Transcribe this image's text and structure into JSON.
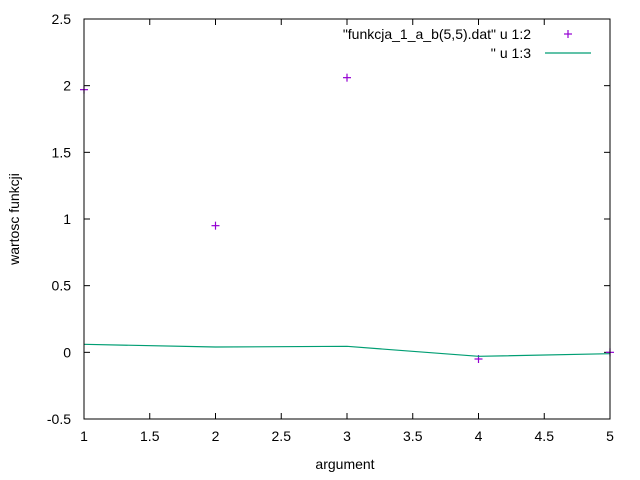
{
  "chart_data": {
    "type": "scatter",
    "title": "",
    "xlabel": "argument",
    "ylabel": "wartosc funkcji",
    "xlim": [
      1,
      5
    ],
    "ylim": [
      -0.5,
      2.5
    ],
    "xticks": [
      "1",
      "1.5",
      "2",
      "2.5",
      "3",
      "3.5",
      "4",
      "4.5",
      "5"
    ],
    "yticks": [
      "-0.5",
      "0",
      "0.5",
      "1",
      "1.5",
      "2",
      "2.5"
    ],
    "grid": false,
    "legend_position": "top-right",
    "series": [
      {
        "name": "\"funkcja_1_a_b(5,5).dat\" u 1:2",
        "style": "points",
        "color": "#9400d3",
        "x": [
          1,
          2,
          3,
          4,
          5
        ],
        "y": [
          1.97,
          0.95,
          2.06,
          -0.05,
          0.0
        ]
      },
      {
        "name": "'' u 1:3",
        "style": "line",
        "color": "#009e73",
        "x": [
          1,
          2,
          3,
          4,
          5
        ],
        "y": [
          0.06,
          0.04,
          0.045,
          -0.03,
          -0.01
        ]
      }
    ]
  }
}
